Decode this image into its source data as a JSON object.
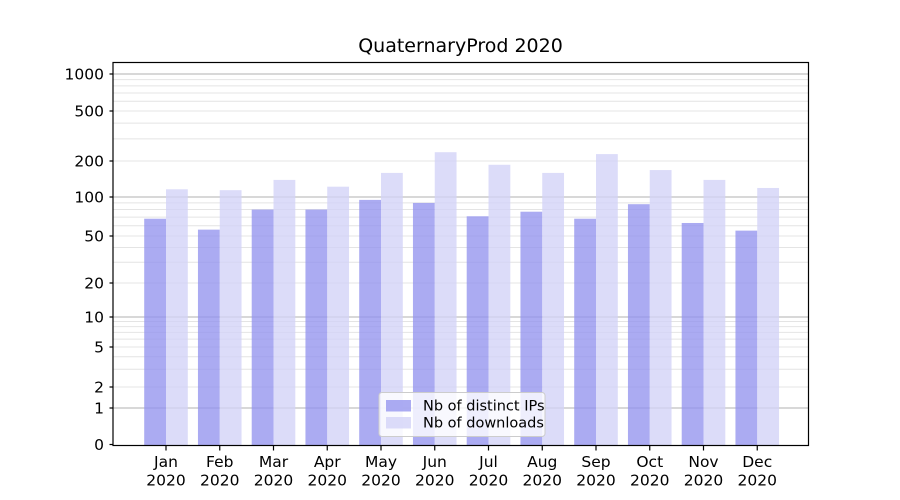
{
  "chart_data": {
    "type": "bar",
    "title": "QuaternaryProd 2020",
    "categories": [
      "Jan 2020",
      "Feb 2020",
      "Mar 2020",
      "Apr 2020",
      "May 2020",
      "Jun 2020",
      "Jul 2020",
      "Aug 2020",
      "Sep 2020",
      "Oct 2020",
      "Nov 2020",
      "Dec 2020"
    ],
    "series": [
      {
        "name": "Nb of distinct IPs",
        "color": "#9494ee",
        "values": [
          68,
          56,
          80,
          80,
          95,
          90,
          71,
          77,
          68,
          88,
          63,
          55
        ]
      },
      {
        "name": "Nb of downloads",
        "color": "#d2d2f7",
        "values": [
          116,
          114,
          139,
          122,
          159,
          235,
          186,
          159,
          227,
          168,
          139,
          119
        ]
      }
    ],
    "bar_opacity": 0.78,
    "yscale": "symlog",
    "y_ticks": [
      0,
      1,
      2,
      5,
      10,
      20,
      50,
      100,
      200,
      500,
      1000
    ],
    "ylim": [
      0,
      1250
    ],
    "xlabel": "",
    "ylabel": "",
    "grid": "both",
    "legend": {
      "position": "lower center",
      "items": [
        "Nb of distinct IPs",
        "Nb of downloads"
      ]
    },
    "colors": {
      "grid_major": "#b0b0b0",
      "grid_minor": "#e4e4e4",
      "spine": "#000000",
      "text": "#000000",
      "background": "#ffffff",
      "legend_border": "#cccccc"
    }
  }
}
